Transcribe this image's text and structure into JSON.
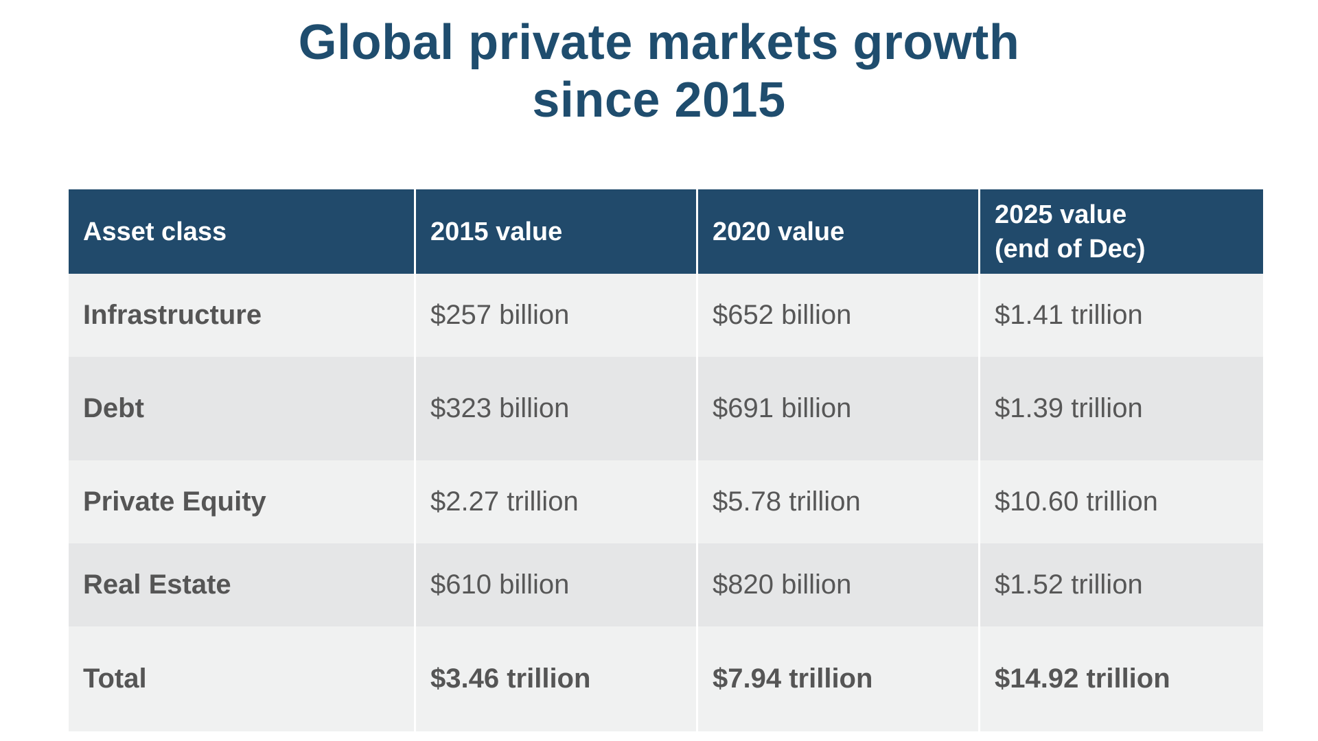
{
  "chart_data": {
    "type": "table",
    "title": [
      "Global private markets growth",
      "since 2015"
    ],
    "columns": [
      "Asset class",
      "2015 value",
      "2020 value",
      [
        "2025 value",
        "(end of Dec)"
      ]
    ],
    "rows": [
      {
        "label": "Infrastructure",
        "values": [
          "$257 billion",
          "$652 billion",
          "$1.41 trillion"
        ]
      },
      {
        "label": "Debt",
        "values": [
          "$323 billion",
          "$691 billion",
          "$1.39 trillion"
        ]
      },
      {
        "label": "Private Equity",
        "values": [
          "$2.27 trillion",
          "$5.78 trillion",
          "$10.60 trillion"
        ]
      },
      {
        "label": "Real Estate",
        "values": [
          "$610 billion",
          "$820 billion",
          "$1.52 trillion"
        ]
      },
      {
        "label": "Total",
        "values": [
          "$3.46 trillion",
          "$7.94 trillion",
          "$14.92 trillion"
        ]
      }
    ]
  },
  "colors": {
    "title": "#1f4d6e",
    "header_bg": "#214a6b",
    "header_text": "#ffffff",
    "row_light": "#f0f1f1",
    "row_dark": "#e5e6e7",
    "body_text": "#575757"
  }
}
